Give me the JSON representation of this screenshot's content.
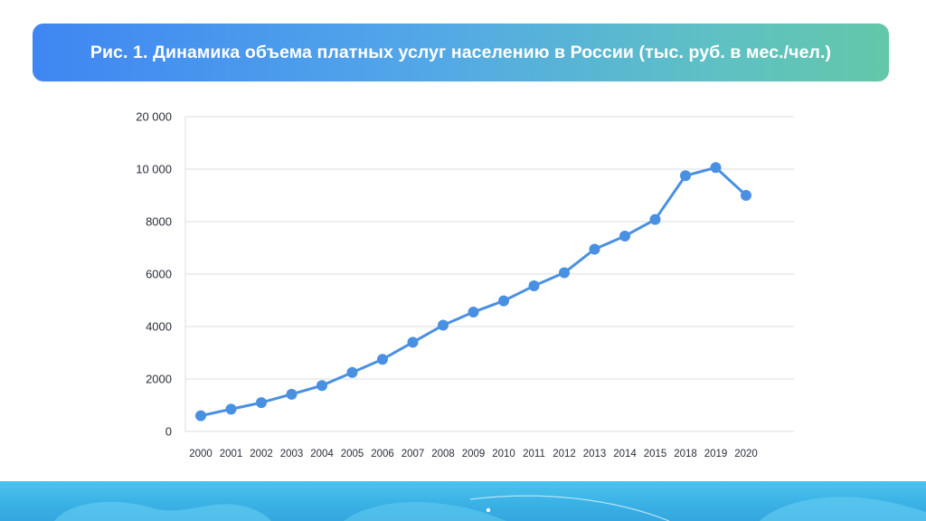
{
  "header": {
    "title": "Рис. 1. Динамика объема платных услуг населению в России (тыс. руб. в мес./чел.)"
  },
  "colors": {
    "line": "#4a90e2",
    "grid": "#d9dde3",
    "text": "#2a2f3a",
    "footer": "#3bb3e6"
  },
  "chart_data": {
    "type": "line",
    "title": "Рис. 1. Динамика объема платных услуг населению в России (тыс. руб. в мес./чел.)",
    "categories": [
      "2000",
      "2001",
      "2002",
      "2003",
      "2004",
      "2005",
      "2006",
      "2007",
      "2008",
      "2009",
      "2010",
      "2011",
      "2012",
      "2013",
      "2014",
      "2015",
      "2018",
      "2019",
      "2020"
    ],
    "y_ticks": [
      {
        "label": "0",
        "value": 0
      },
      {
        "label": "2000",
        "value": 2000
      },
      {
        "label": "4000",
        "value": 4000
      },
      {
        "label": "6000",
        "value": 6000
      },
      {
        "label": "8000",
        "value": 8000
      },
      {
        "label": "10 000",
        "value": 10000
      },
      {
        "label": "20 000",
        "value": 20000
      }
    ],
    "y_axis_note": "non-uniform scale: equal spacing between ticks 0–10 000 and 10 000–20 000",
    "series": [
      {
        "values": [
          600,
          850,
          1100,
          1420,
          1750,
          2250,
          2750,
          3400,
          4050,
          4550,
          4980,
          5550,
          6050,
          6950,
          7450,
          8080,
          9750,
          10300,
          9000
        ]
      }
    ],
    "grid": true,
    "legend": "none"
  }
}
